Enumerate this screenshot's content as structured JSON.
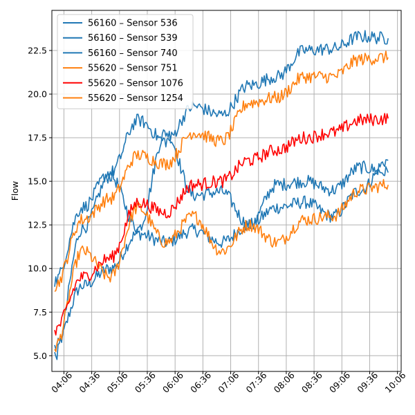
{
  "chart_data": {
    "type": "line",
    "title": "",
    "xlabel": "",
    "ylabel": "Flow",
    "x_ticks": [
      "04:06",
      "04:36",
      "05:06",
      "05:36",
      "06:06",
      "06:36",
      "07:06",
      "07:36",
      "08:06",
      "08:36",
      "09:06",
      "09:36",
      "10:06"
    ],
    "y_ticks": [
      "5.0",
      "7.5",
      "10.0",
      "12.5",
      "15.0",
      "17.5",
      "20.0",
      "22.5"
    ],
    "xlim": [
      "03:53",
      "10:10"
    ],
    "ylim": [
      4.1,
      24.8
    ],
    "x_start": "03:56",
    "x_end": "09:56",
    "x_step_minutes": 30,
    "grid": true,
    "legend_position": "top-left",
    "series": [
      {
        "name": "56160 – Sensor 536",
        "color": "#1f77b4",
        "values": [
          5.0,
          12.3,
          15.3,
          12.3,
          17.8,
          14.2,
          14.4,
          12.5,
          14.8,
          15.0,
          14.5,
          15.8,
          15.5
        ]
      },
      {
        "name": "56160 – Sensor 539",
        "color": "#1f77b4",
        "values": [
          5.5,
          9.0,
          10.0,
          12.0,
          11.5,
          12.2,
          11.5,
          12.5,
          13.5,
          13.8,
          13.0,
          14.5,
          16.2
        ]
      },
      {
        "name": "56160 – Sensor 740",
        "color": "#1f77b4",
        "values": [
          9.3,
          13.5,
          15.5,
          18.5,
          17.3,
          19.3,
          18.8,
          20.5,
          21.0,
          22.5,
          22.6,
          23.3,
          23.2
        ]
      },
      {
        "name": "55620 – Sensor 751",
        "color": "#ff7f0e",
        "values": [
          9.0,
          12.8,
          14.0,
          16.5,
          16.0,
          17.8,
          17.3,
          19.5,
          19.8,
          21.0,
          21.0,
          22.0,
          22.1
        ]
      },
      {
        "name": "55620 – Sensor 1076",
        "color": "#ff0000",
        "values": [
          6.5,
          9.5,
          10.6,
          13.8,
          13.2,
          14.8,
          15.0,
          16.2,
          16.8,
          17.5,
          17.8,
          18.5,
          18.6
        ]
      },
      {
        "name": "55620 – Sensor 1254",
        "color": "#ff7f0e",
        "values": [
          5.5,
          11.0,
          9.5,
          13.5,
          11.5,
          13.0,
          11.0,
          12.5,
          11.5,
          12.8,
          13.0,
          14.5,
          14.8
        ]
      }
    ]
  }
}
